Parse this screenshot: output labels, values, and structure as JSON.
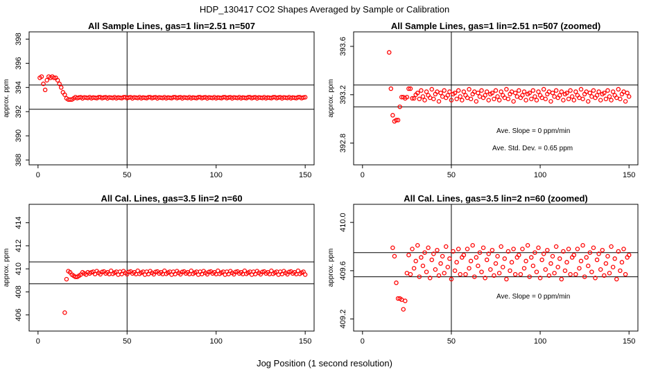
{
  "figure": {
    "suptitle": "HDP_130417  CO2 Shapes Averaged by Sample or Calibration",
    "xlabel": "Jog Position (1 second resolution)"
  },
  "colors": {
    "points": "#ff0000",
    "axes": "#000000",
    "background": "#ffffff"
  },
  "chart_data": [
    {
      "type": "scatter",
      "title": "All Sample Lines, gas=1 lin=2.51 n=507",
      "ylabel": "approx. ppm",
      "xlim": [
        -5,
        155
      ],
      "ylim": [
        387.6,
        398.6
      ],
      "xticks": [
        0,
        50,
        100,
        150
      ],
      "yticks": [
        388,
        390,
        392,
        394,
        396,
        398
      ],
      "vline": 50,
      "hlines": [
        392.2,
        394.2
      ],
      "annotations": [],
      "series": [
        {
          "x": [
            1,
            2,
            3,
            4,
            5,
            6,
            7,
            8,
            9,
            10,
            11,
            12,
            13,
            14,
            15,
            16,
            17,
            18,
            19,
            20
          ],
          "y": [
            394.8,
            394.9,
            394.3,
            393.8,
            394.6,
            394.9,
            394.8,
            394.9,
            394.8,
            394.8,
            394.6,
            394.3,
            394.0,
            393.6,
            393.4,
            393.1,
            393.0,
            393.0,
            393.0,
            393.1
          ]
        },
        {
          "x_start": 21,
          "x_end": 150,
          "base": 393.15,
          "offsets": [
            0.05,
            -0.03,
            0.02,
            0.04,
            -0.05,
            0.03,
            0.01,
            -0.02,
            0.05,
            -0.04,
            0.02,
            0.0,
            -0.03,
            0.04
          ]
        }
      ]
    },
    {
      "type": "scatter",
      "title": "All Sample Lines, gas=1 lin=2.51 n=507 (zoomed)",
      "ylabel": "approx. ppm",
      "xlim": [
        -5,
        155
      ],
      "ylim": [
        392.62,
        393.72
      ],
      "xticks": [
        0,
        50,
        100,
        150
      ],
      "yticks": [
        392.8,
        393.2,
        393.6
      ],
      "ytick_labels": [
        "392.8",
        "393.2",
        "393.6"
      ],
      "vline": 50,
      "hlines": [
        393.1,
        393.28
      ],
      "annotations": [
        "Ave. Slope =  0  ppm/min",
        "Ave. Std. Dev. =  0.65  ppm"
      ],
      "series": [
        {
          "x": [
            15,
            16,
            17,
            18,
            19,
            20,
            21,
            22,
            23,
            24,
            25,
            26,
            27,
            28,
            29,
            30
          ],
          "y": [
            393.55,
            393.25,
            393.03,
            392.98,
            392.99,
            392.99,
            393.1,
            393.18,
            393.18,
            393.17,
            393.18,
            393.25,
            393.25,
            393.17,
            393.17,
            393.2
          ]
        },
        {
          "x_start": 31,
          "x_end": 150,
          "base": 393.195,
          "offsets": [
            0.02,
            -0.03,
            0.04,
            -0.01,
            -0.04,
            0.03,
            0.0,
            -0.02,
            0.05,
            -0.03,
            0.01,
            0.03,
            -0.05,
            0.02,
            -0.01,
            0.04,
            -0.02,
            0.0,
            0.03,
            -0.04,
            0.01
          ]
        }
      ]
    },
    {
      "type": "scatter",
      "title": "All Cal. Lines, gas=3.5 lin=2 n=60",
      "ylabel": "approx. ppm",
      "xlim": [
        -5,
        155
      ],
      "ylim": [
        404.6,
        415.6
      ],
      "xticks": [
        0,
        50,
        100,
        150
      ],
      "yticks": [
        406,
        408,
        410,
        412,
        414
      ],
      "vline": 50,
      "hlines": [
        408.7,
        410.6
      ],
      "annotations": [],
      "series": [
        {
          "x": [
            15,
            16,
            17,
            18,
            19,
            20,
            21,
            22,
            23,
            24,
            25,
            26,
            27,
            28,
            29,
            30
          ],
          "y": [
            406.2,
            409.1,
            409.8,
            409.7,
            409.5,
            409.4,
            409.3,
            409.3,
            409.4,
            409.5,
            409.7,
            409.6,
            409.5,
            409.7,
            409.6,
            409.7
          ]
        },
        {
          "x_start": 31,
          "x_end": 150,
          "base": 409.65,
          "offsets": [
            0.1,
            -0.1,
            0.15,
            0.0,
            -0.12,
            0.08,
            0.12,
            -0.05,
            0.05,
            -0.1,
            0.18,
            -0.08,
            0.02,
            0.1,
            -0.15
          ]
        }
      ]
    },
    {
      "type": "scatter",
      "title": "All Cal. Lines, gas=3.5 lin=2 n=60 (zoomed)",
      "ylabel": "approx. ppm",
      "xlim": [
        -5,
        155
      ],
      "ylim": [
        409.1,
        410.15
      ],
      "xticks": [
        0,
        50,
        100,
        150
      ],
      "yticks": [
        409.2,
        409.6,
        410.0
      ],
      "ytick_labels": [
        "409.2",
        "409.6",
        "410.0"
      ],
      "vline": 50,
      "hlines": [
        409.55,
        409.75
      ],
      "annotations": [
        "Ave. Slope =  0  ppm/min"
      ],
      "series": [
        {
          "x": [
            17,
            18,
            19,
            20,
            21,
            22,
            23,
            24,
            25
          ],
          "y": [
            409.79,
            409.72,
            409.5,
            409.37,
            409.37,
            409.36,
            409.28,
            409.35,
            409.58
          ]
        },
        {
          "x_start": 26,
          "x_end": 150,
          "step": 1,
          "base": 409.66,
          "offsets": [
            0.07,
            -0.09,
            0.12,
            -0.04,
            0.02,
            0.15,
            -0.11,
            0.05,
            -0.02,
            0.09,
            -0.07,
            0.13,
            -0.12,
            0.03,
            0.08,
            -0.05,
            0.11,
            -0.1,
            0.0,
            0.06,
            -0.08,
            0.14,
            -0.03,
            0.04,
            -0.13,
            0.1,
            -0.06,
            0.01,
            0.12,
            -0.09,
            0.05
          ]
        }
      ]
    }
  ]
}
